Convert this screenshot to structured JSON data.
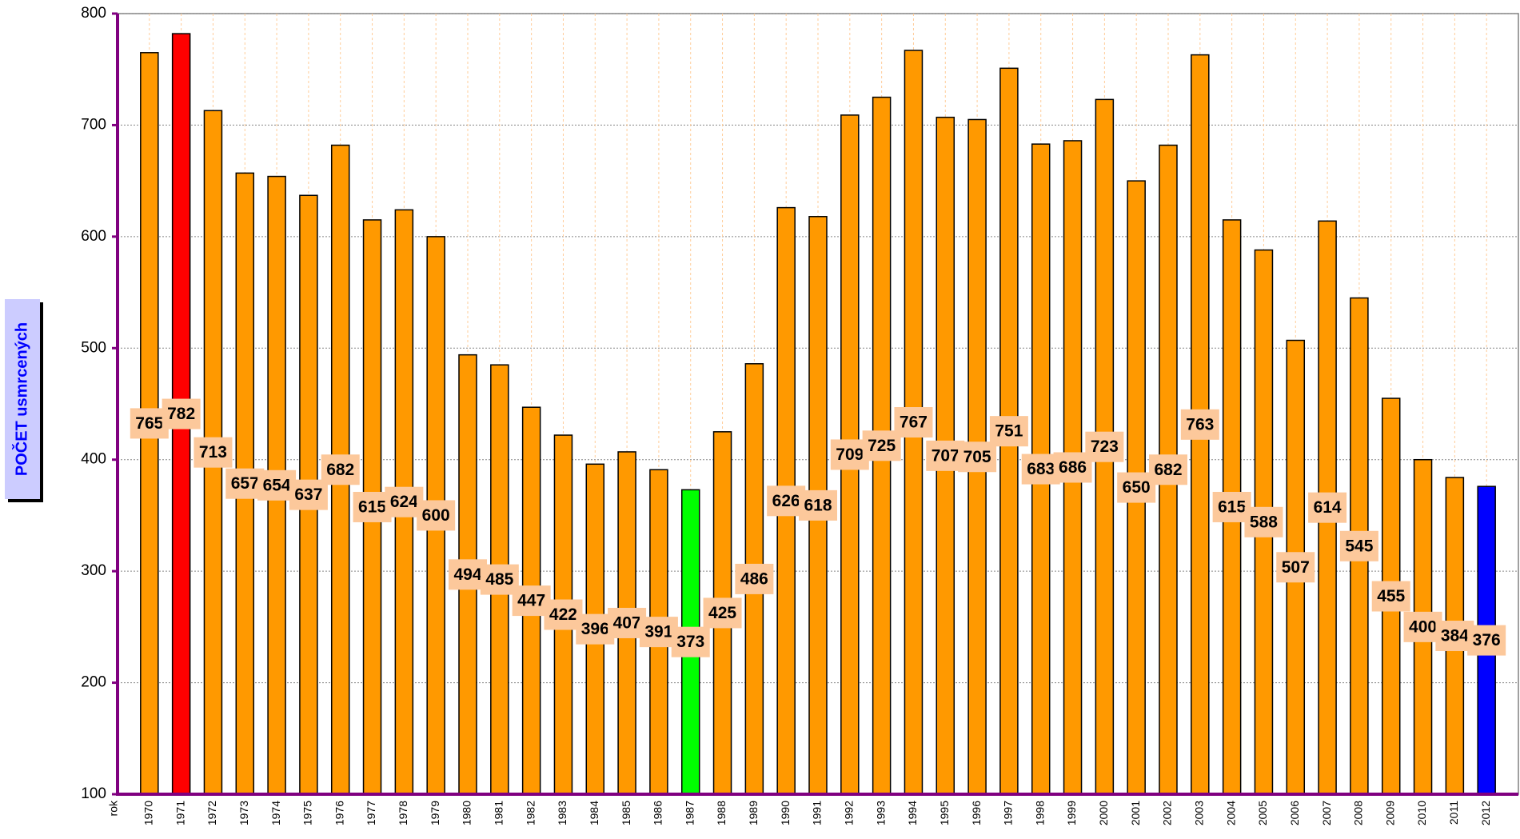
{
  "chart_data": {
    "type": "bar",
    "y_label": "POČET usmrcených",
    "x_label": "rok",
    "categories": [
      "1970",
      "1971",
      "1972",
      "1973",
      "1974",
      "1975",
      "1976",
      "1977",
      "1978",
      "1979",
      "1980",
      "1981",
      "1982",
      "1983",
      "1984",
      "1985",
      "1986",
      "1987",
      "1988",
      "1989",
      "1990",
      "1991",
      "1992",
      "1993",
      "1994",
      "1995",
      "1996",
      "1997",
      "1998",
      "1999",
      "2000",
      "2001",
      "2002",
      "2003",
      "2004",
      "2005",
      "2006",
      "2007",
      "2008",
      "2009",
      "2010",
      "2011",
      "2012"
    ],
    "values": [
      765,
      782,
      713,
      657,
      654,
      637,
      682,
      615,
      624,
      600,
      494,
      485,
      447,
      422,
      396,
      407,
      391,
      373,
      425,
      486,
      626,
      618,
      709,
      725,
      767,
      707,
      705,
      751,
      683,
      686,
      723,
      650,
      682,
      763,
      615,
      588,
      507,
      614,
      545,
      455,
      400,
      384,
      376
    ],
    "colors": [
      "#ff9900",
      "#ff0000",
      "#ff9900",
      "#ff9900",
      "#ff9900",
      "#ff9900",
      "#ff9900",
      "#ff9900",
      "#ff9900",
      "#ff9900",
      "#ff9900",
      "#ff9900",
      "#ff9900",
      "#ff9900",
      "#ff9900",
      "#ff9900",
      "#ff9900",
      "#00ff00",
      "#ff9900",
      "#ff9900",
      "#ff9900",
      "#ff9900",
      "#ff9900",
      "#ff9900",
      "#ff9900",
      "#ff9900",
      "#ff9900",
      "#ff9900",
      "#ff9900",
      "#ff9900",
      "#ff9900",
      "#ff9900",
      "#ff9900",
      "#ff9900",
      "#ff9900",
      "#ff9900",
      "#ff9900",
      "#ff9900",
      "#ff9900",
      "#ff9900",
      "#ff9900",
      "#ff9900",
      "#0000ff"
    ],
    "ylim": [
      100,
      800
    ],
    "yticks": [
      100,
      200,
      300,
      400,
      500,
      600,
      700,
      800
    ],
    "grid": true
  }
}
